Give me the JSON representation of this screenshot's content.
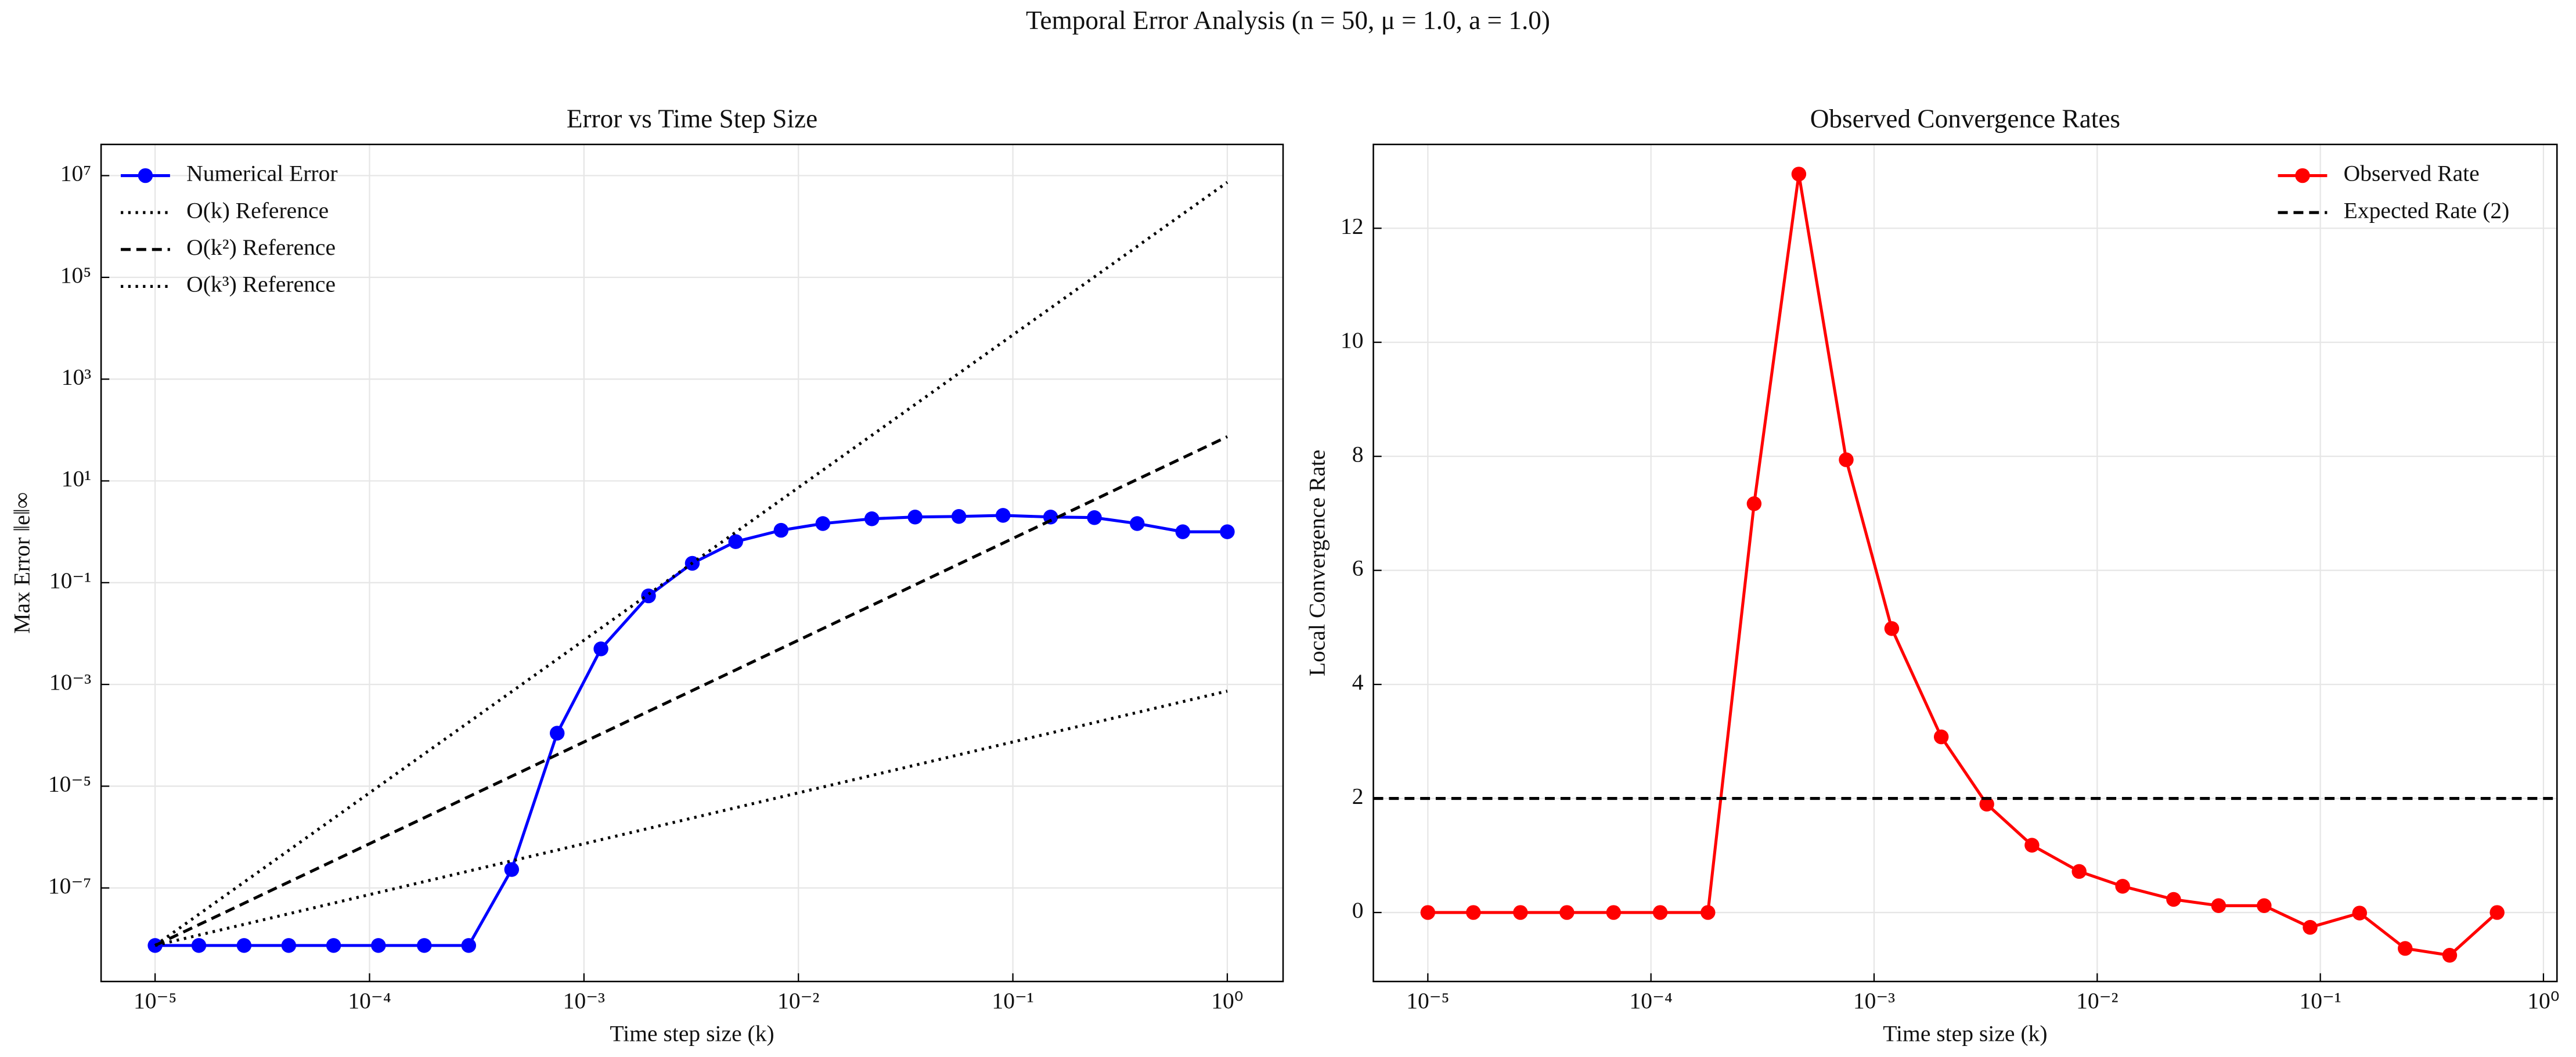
{
  "title": "Temporal Error Analysis (n = 50, μ = 1.0, a = 1.0)",
  "chart_data": [
    {
      "type": "line",
      "title": "Error vs Time Step Size",
      "xlabel": "Time step size (k)",
      "ylabel": "Max Error ‖e‖∞",
      "xscale": "log",
      "yscale": "log",
      "grid": true,
      "legend": "upper left",
      "xlim": [
        5.6e-06,
        1.82
      ],
      "ylim": [
        1.45e-09,
        41000000.0
      ],
      "xticks": [
        {
          "value": 1e-05,
          "label": "10⁻⁵"
        },
        {
          "value": 0.0001,
          "label": "10⁻⁴"
        },
        {
          "value": 0.001,
          "label": "10⁻³"
        },
        {
          "value": 0.01,
          "label": "10⁻²"
        },
        {
          "value": 0.1,
          "label": "10⁻¹"
        },
        {
          "value": 1,
          "label": "10⁰"
        }
      ],
      "yticks": [
        {
          "value": 1e-07,
          "label": "10⁻⁷"
        },
        {
          "value": 1e-05,
          "label": "10⁻⁵"
        },
        {
          "value": 0.001,
          "label": "10⁻³"
        },
        {
          "value": 0.1,
          "label": "10⁻¹"
        },
        {
          "value": 10,
          "label": "10¹"
        },
        {
          "value": 1000,
          "label": "10³"
        },
        {
          "value": 100000,
          "label": "10⁵"
        },
        {
          "value": 10000000,
          "label": "10⁷"
        }
      ],
      "series": [
        {
          "name": "Numerical Error",
          "color": "#0000ff",
          "linestyle": "solid",
          "marker": true,
          "x": [
            1e-05,
            1.6e-05,
            2.6e-05,
            4.2e-05,
            6.8e-05,
            0.00011,
            0.00018,
            0.00029,
            0.00046,
            0.00075,
            0.0012,
            0.002,
            0.0032,
            0.0051,
            0.0083,
            0.013,
            0.022,
            0.035,
            0.056,
            0.09,
            0.15,
            0.24,
            0.38,
            0.62,
            1.0
          ],
          "values": [
            7.4e-09,
            7.4e-09,
            7.4e-09,
            7.4e-09,
            7.4e-09,
            7.4e-09,
            7.4e-09,
            7.4e-09,
            2.3e-07,
            0.00011,
            0.005,
            0.055,
            0.24,
            0.64,
            1.07,
            1.45,
            1.8,
            1.95,
            2.0,
            2.1,
            1.95,
            1.9,
            1.45,
            1.0,
            1.0
          ]
        },
        {
          "name": "O(k) Reference",
          "color": "#000000",
          "linestyle": "dotted",
          "x": [
            1e-05,
            1.0
          ],
          "values": [
            7.4e-09,
            0.00074
          ]
        },
        {
          "name": "O(k²) Reference",
          "color": "#000000",
          "linestyle": "dashed",
          "x": [
            1e-05,
            1.0
          ],
          "values": [
            7.4e-09,
            74
          ]
        },
        {
          "name": "O(k³) Reference",
          "color": "#000000",
          "linestyle": "dotted",
          "x": [
            1e-05,
            1.0
          ],
          "values": [
            7.4e-09,
            7400000.0
          ]
        }
      ]
    },
    {
      "type": "line",
      "title": "Observed Convergence Rates",
      "xlabel": "Time step size (k)",
      "ylabel": "Local Convergence Rate",
      "xscale": "log",
      "yscale": "linear",
      "grid": true,
      "legend": "upper right",
      "xlim": [
        5.7e-06,
        1.15
      ],
      "ylim": [
        -1.21,
        13.47
      ],
      "xticks": [
        {
          "value": 1e-05,
          "label": "10⁻⁵"
        },
        {
          "value": 0.0001,
          "label": "10⁻⁴"
        },
        {
          "value": 0.001,
          "label": "10⁻³"
        },
        {
          "value": 0.01,
          "label": "10⁻²"
        },
        {
          "value": 0.1,
          "label": "10⁻¹"
        },
        {
          "value": 1,
          "label": "10⁰"
        }
      ],
      "yticks": [
        0,
        2,
        4,
        6,
        8,
        10,
        12
      ],
      "series": [
        {
          "name": "Observed Rate",
          "color": "#ff0000",
          "linestyle": "solid",
          "marker": true,
          "x": [
            1e-05,
            1.6e-05,
            2.6e-05,
            4.2e-05,
            6.8e-05,
            0.00011,
            0.00018,
            0.00029,
            0.00046,
            0.00075,
            0.0012,
            0.002,
            0.0032,
            0.0051,
            0.0083,
            0.013,
            0.022,
            0.035,
            0.056,
            0.09,
            0.15,
            0.24,
            0.38,
            0.62
          ],
          "values": [
            0,
            0,
            0,
            0,
            0,
            0,
            0,
            7.17,
            12.95,
            7.94,
            4.98,
            3.08,
            1.9,
            1.18,
            0.72,
            0.46,
            0.23,
            0.12,
            0.12,
            -0.26,
            -0.01,
            -0.63,
            -0.75,
            0
          ]
        },
        {
          "name": "Expected Rate (2)",
          "color": "#000000",
          "linestyle": "dashed",
          "hline": 2
        }
      ]
    }
  ]
}
